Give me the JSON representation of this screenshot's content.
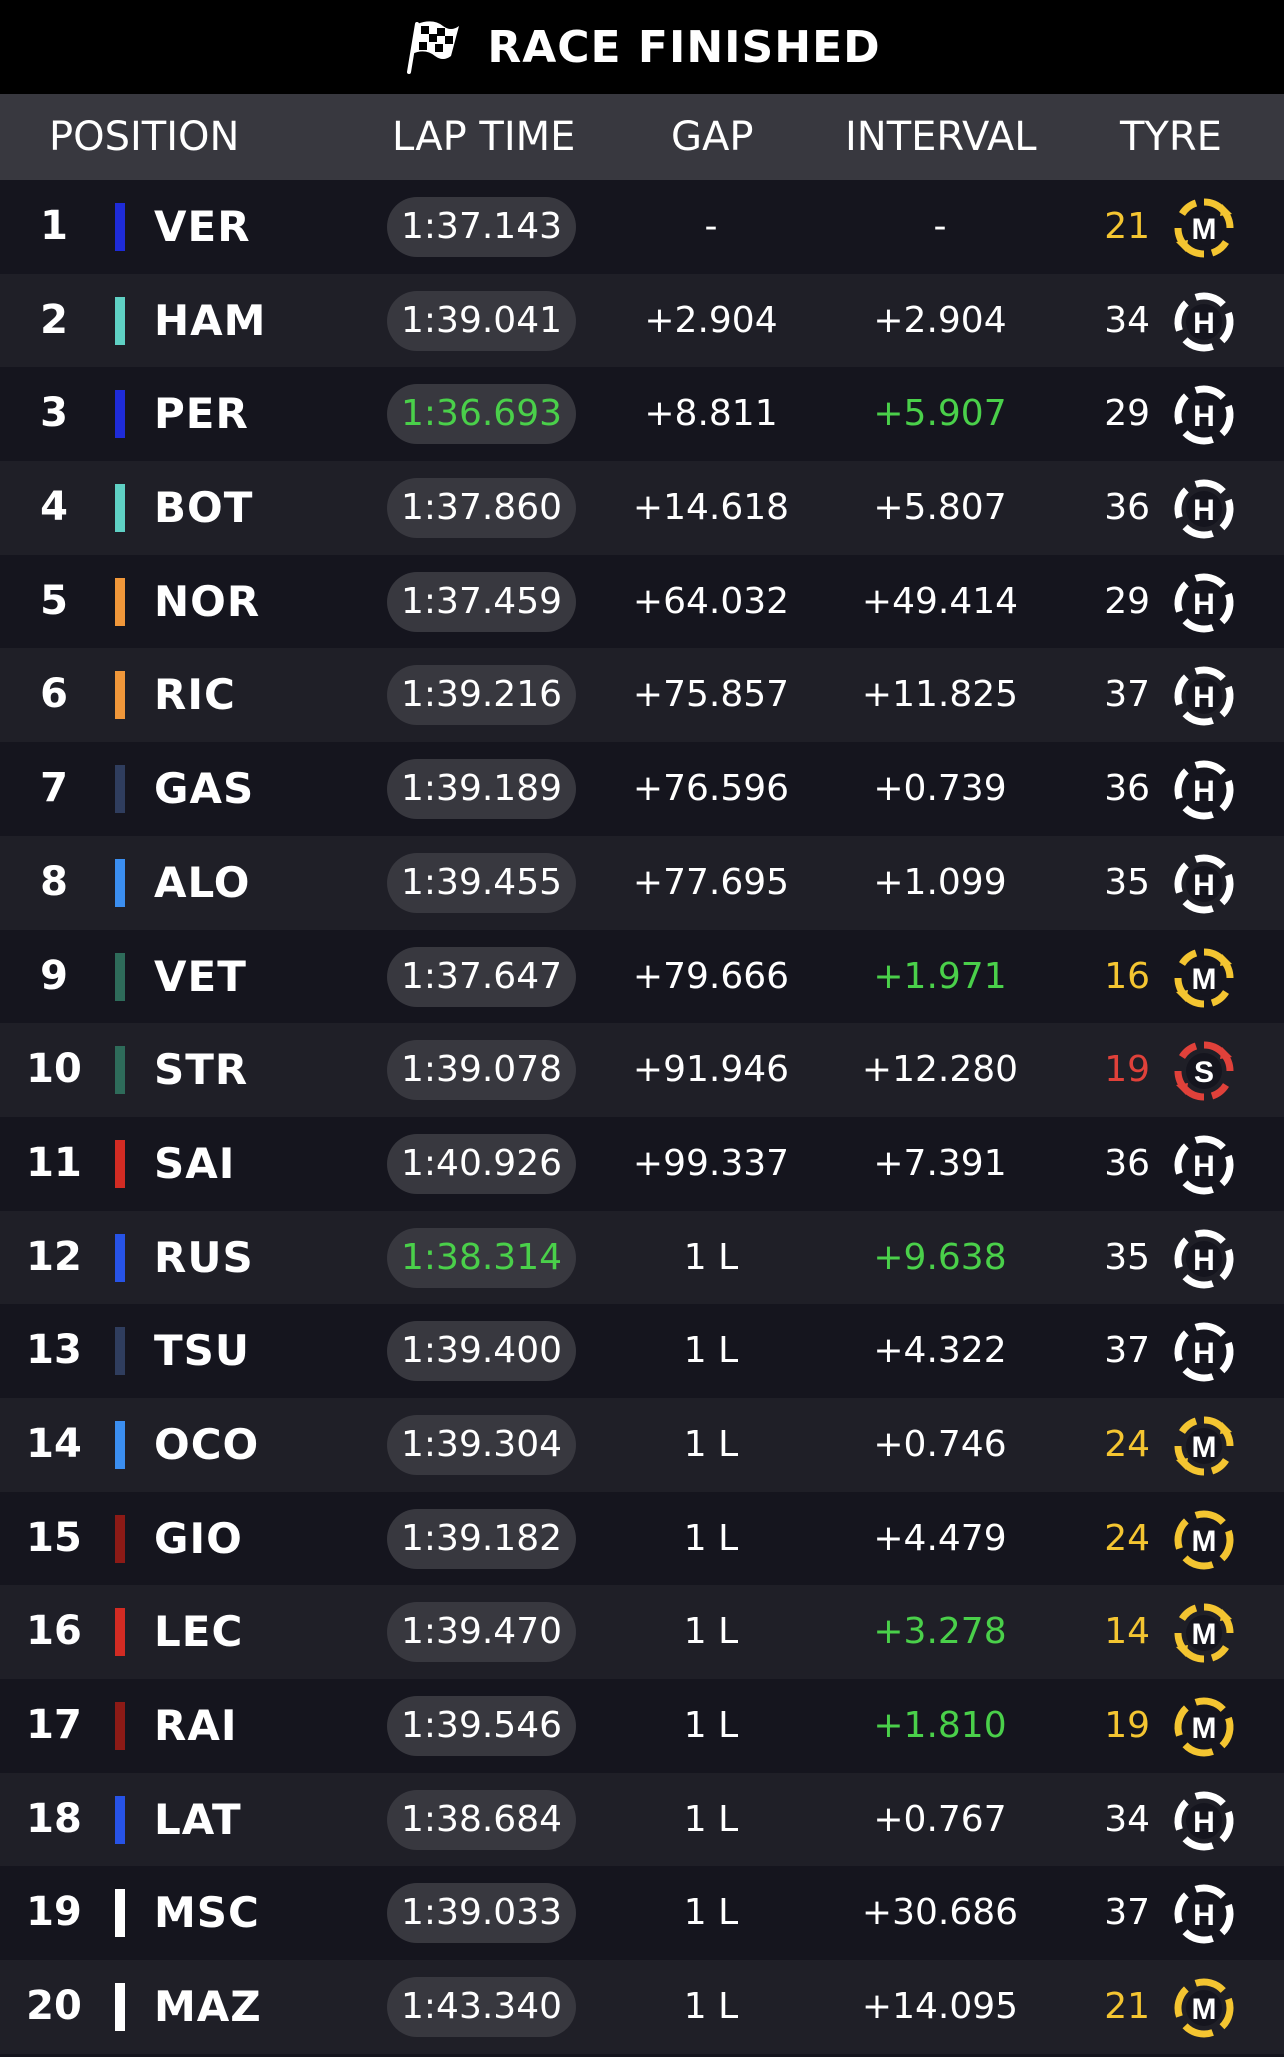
{
  "title": "RACE FINISHED",
  "headers": {
    "position": "POSITION",
    "lap_time": "LAP TIME",
    "gap": "GAP",
    "interval": "INTERVAL",
    "tyre": "TYRE"
  },
  "colors": {
    "fastest_green": "#4ad04a",
    "medium_yellow": "#f4c531",
    "soft_red": "#e0413a",
    "hard_white": "#ffffff"
  },
  "rows": [
    {
      "pos": "1",
      "team_color": "#1e2bd8",
      "driver": "VER",
      "lap": "1:37.143",
      "lap_best": false,
      "gap": "-",
      "interval": "-",
      "interval_best": false,
      "laps": "21",
      "tyre": "M",
      "tyre_new": true
    },
    {
      "pos": "2",
      "team_color": "#5fd0c4",
      "driver": "HAM",
      "lap": "1:39.041",
      "lap_best": false,
      "gap": "+2.904",
      "interval": "+2.904",
      "interval_best": false,
      "laps": "34",
      "tyre": "H",
      "tyre_new": false
    },
    {
      "pos": "3",
      "team_color": "#1e2bd8",
      "driver": "PER",
      "lap": "1:36.693",
      "lap_best": true,
      "gap": "+8.811",
      "interval": "+5.907",
      "interval_best": true,
      "laps": "29",
      "tyre": "H",
      "tyre_new": false
    },
    {
      "pos": "4",
      "team_color": "#5fd0c4",
      "driver": "BOT",
      "lap": "1:37.860",
      "lap_best": false,
      "gap": "+14.618",
      "interval": "+5.807",
      "interval_best": false,
      "laps": "36",
      "tyre": "H",
      "tyre_new": false
    },
    {
      "pos": "5",
      "team_color": "#f0973a",
      "driver": "NOR",
      "lap": "1:37.459",
      "lap_best": false,
      "gap": "+64.032",
      "interval": "+49.414",
      "interval_best": false,
      "laps": "29",
      "tyre": "H",
      "tyre_new": false
    },
    {
      "pos": "6",
      "team_color": "#f0973a",
      "driver": "RIC",
      "lap": "1:39.216",
      "lap_best": false,
      "gap": "+75.857",
      "interval": "+11.825",
      "interval_best": false,
      "laps": "37",
      "tyre": "H",
      "tyre_new": false
    },
    {
      "pos": "7",
      "team_color": "#2f3d5e",
      "driver": "GAS",
      "lap": "1:39.189",
      "lap_best": false,
      "gap": "+76.596",
      "interval": "+0.739",
      "interval_best": false,
      "laps": "36",
      "tyre": "H",
      "tyre_new": false
    },
    {
      "pos": "8",
      "team_color": "#3b8ef0",
      "driver": "ALO",
      "lap": "1:39.455",
      "lap_best": false,
      "gap": "+77.695",
      "interval": "+1.099",
      "interval_best": false,
      "laps": "35",
      "tyre": "H",
      "tyre_new": false
    },
    {
      "pos": "9",
      "team_color": "#2e6b5a",
      "driver": "VET",
      "lap": "1:37.647",
      "lap_best": false,
      "gap": "+79.666",
      "interval": "+1.971",
      "interval_best": true,
      "laps": "16",
      "tyre": "M",
      "tyre_new": true
    },
    {
      "pos": "10",
      "team_color": "#2e6b5a",
      "driver": "STR",
      "lap": "1:39.078",
      "lap_best": false,
      "gap": "+91.946",
      "interval": "+12.280",
      "interval_best": false,
      "laps": "19",
      "tyre": "S",
      "tyre_new": true
    },
    {
      "pos": "11",
      "team_color": "#d22b23",
      "driver": "SAI",
      "lap": "1:40.926",
      "lap_best": false,
      "gap": "+99.337",
      "interval": "+7.391",
      "interval_best": false,
      "laps": "36",
      "tyre": "H",
      "tyre_new": false
    },
    {
      "pos": "12",
      "team_color": "#2753e6",
      "driver": "RUS",
      "lap": "1:38.314",
      "lap_best": true,
      "gap": "1 L",
      "interval": "+9.638",
      "interval_best": true,
      "laps": "35",
      "tyre": "H",
      "tyre_new": false
    },
    {
      "pos": "13",
      "team_color": "#2f3d5e",
      "driver": "TSU",
      "lap": "1:39.400",
      "lap_best": false,
      "gap": "1 L",
      "interval": "+4.322",
      "interval_best": false,
      "laps": "37",
      "tyre": "H",
      "tyre_new": false
    },
    {
      "pos": "14",
      "team_color": "#3b8ef0",
      "driver": "OCO",
      "lap": "1:39.304",
      "lap_best": false,
      "gap": "1 L",
      "interval": "+0.746",
      "interval_best": false,
      "laps": "24",
      "tyre": "M",
      "tyre_new": true
    },
    {
      "pos": "15",
      "team_color": "#8c1a16",
      "driver": "GIO",
      "lap": "1:39.182",
      "lap_best": false,
      "gap": "1 L",
      "interval": "+4.479",
      "interval_best": false,
      "laps": "24",
      "tyre": "M",
      "tyre_new": false
    },
    {
      "pos": "16",
      "team_color": "#d22b23",
      "driver": "LEC",
      "lap": "1:39.470",
      "lap_best": false,
      "gap": "1 L",
      "interval": "+3.278",
      "interval_best": true,
      "laps": "14",
      "tyre": "M",
      "tyre_new": true
    },
    {
      "pos": "17",
      "team_color": "#8c1a16",
      "driver": "RAI",
      "lap": "1:39.546",
      "lap_best": false,
      "gap": "1 L",
      "interval": "+1.810",
      "interval_best": true,
      "laps": "19",
      "tyre": "M",
      "tyre_new": false
    },
    {
      "pos": "18",
      "team_color": "#2753e6",
      "driver": "LAT",
      "lap": "1:38.684",
      "lap_best": false,
      "gap": "1 L",
      "interval": "+0.767",
      "interval_best": false,
      "laps": "34",
      "tyre": "H",
      "tyre_new": false
    },
    {
      "pos": "19",
      "team_color": "#ffffff",
      "driver": "MSC",
      "lap": "1:39.033",
      "lap_best": false,
      "gap": "1 L",
      "interval": "+30.686",
      "interval_best": false,
      "laps": "37",
      "tyre": "H",
      "tyre_new": false
    },
    {
      "pos": "20",
      "team_color": "#ffffff",
      "driver": "MAZ",
      "lap": "1:43.340",
      "lap_best": false,
      "gap": "1 L",
      "interval": "+14.095",
      "interval_best": false,
      "laps": "21",
      "tyre": "M",
      "tyre_new": false
    }
  ]
}
